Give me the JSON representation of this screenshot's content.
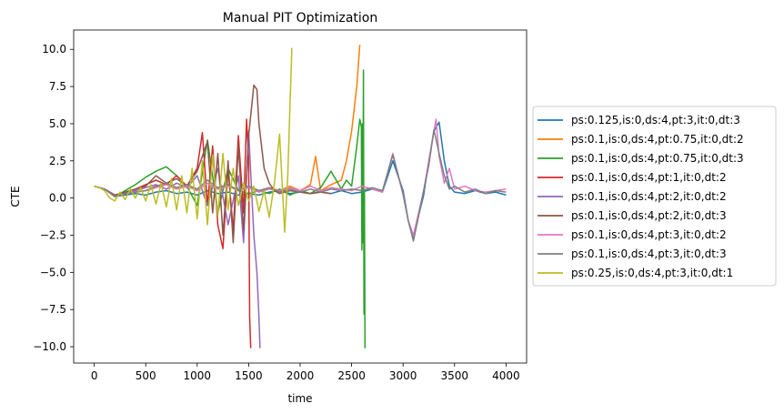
{
  "chart_data": {
    "type": "line",
    "title": "Manual PIT Optimization",
    "xlabel": "time",
    "ylabel": "CTE",
    "xlim": [
      -200,
      4200
    ],
    "ylim": [
      -11.1,
      11.3
    ],
    "xticks": [
      0,
      500,
      1000,
      1500,
      2000,
      2500,
      3000,
      3500,
      4000
    ],
    "xtick_labels": [
      "0",
      "500",
      "1000",
      "1500",
      "2000",
      "2500",
      "3000",
      "3500",
      "4000"
    ],
    "yticks": [
      -10.0,
      -7.5,
      -5.0,
      -2.5,
      0.0,
      2.5,
      5.0,
      7.5,
      10.0
    ],
    "ytick_labels": [
      "−10.0",
      "−7.5",
      "−5.0",
      "−2.5",
      "0.0",
      "2.5",
      "5.0",
      "7.5",
      "10.0"
    ],
    "grid": false,
    "legend_position": "right-outside",
    "series": [
      {
        "name": "ps:0.125,is:0,ds:4,pt:3,it:0,dt:3",
        "color": "#1f77b4",
        "x": [
          0,
          100,
          200,
          300,
          400,
          500,
          600,
          700,
          800,
          900,
          1000,
          1100,
          1200,
          1300,
          1400,
          1500,
          1600,
          1700,
          1800,
          1900,
          2000,
          2100,
          2200,
          2300,
          2400,
          2500,
          2600,
          2700,
          2800,
          2900,
          3000,
          3050,
          3100,
          3150,
          3200,
          3250,
          3300,
          3350,
          3400,
          3450,
          3500,
          3600,
          3700,
          3800,
          3900,
          4000
        ],
        "y": [
          0.8,
          0.6,
          0.1,
          0.2,
          0.3,
          0.2,
          0.4,
          0.5,
          0.3,
          0.4,
          0.2,
          0.5,
          0.3,
          0.4,
          0.2,
          0.3,
          0.2,
          0.4,
          0.5,
          0.3,
          0.4,
          0.3,
          0.4,
          0.3,
          0.5,
          0.3,
          0.4,
          0.6,
          0.4,
          2.5,
          0.5,
          -1.5,
          -2.8,
          -1.2,
          0.2,
          2.5,
          4.5,
          5.1,
          2.5,
          0.8,
          0.4,
          0.3,
          0.5,
          0.3,
          0.4,
          0.2
        ]
      },
      {
        "name": "ps:0.1,is:0,ds:4,pt:0.75,it:0,dt:2",
        "color": "#ff7f0e",
        "x": [
          0,
          100,
          200,
          300,
          400,
          500,
          600,
          700,
          800,
          900,
          1000,
          1100,
          1200,
          1300,
          1400,
          1500,
          1600,
          1700,
          1800,
          1900,
          2000,
          2100,
          2150,
          2200,
          2300,
          2400,
          2450,
          2500,
          2550,
          2580
        ],
        "y": [
          0.8,
          0.6,
          0.1,
          0.3,
          0.4,
          0.5,
          0.7,
          0.9,
          0.6,
          0.9,
          0.5,
          1.0,
          0.6,
          0.9,
          0.5,
          0.8,
          0.4,
          0.7,
          0.5,
          0.8,
          0.5,
          0.9,
          2.8,
          0.5,
          0.9,
          1.2,
          2.5,
          4.5,
          7.5,
          10.3
        ]
      },
      {
        "name": "ps:0.1,is:0,ds:4,pt:0.75,it:0,dt:3",
        "color": "#2ca02c",
        "x": [
          0,
          100,
          200,
          300,
          400,
          500,
          600,
          700,
          800,
          900,
          1000,
          1100,
          1200,
          1300,
          1400,
          1500,
          1600,
          1700,
          1800,
          1900,
          2000,
          2100,
          2200,
          2300,
          2400,
          2450,
          2500,
          2550,
          2580,
          2595,
          2600,
          2605,
          2610,
          2615,
          2620,
          2625,
          2630
        ],
        "y": [
          0.8,
          0.6,
          0.1,
          0.5,
          0.9,
          1.4,
          1.8,
          2.1,
          1.5,
          0.8,
          -0.5,
          3.9,
          -1.0,
          2.0,
          0.5,
          0.3,
          0.5,
          0.3,
          0.6,
          0.2,
          0.5,
          0.3,
          0.7,
          1.8,
          0.6,
          1.2,
          0.8,
          3.5,
          5.3,
          4.8,
          -3.5,
          5.0,
          -3.0,
          8.6,
          -7.8,
          0.5,
          -10.1
        ]
      },
      {
        "name": "ps:0.1,is:0,ds:4,pt:1,it:0,dt:2",
        "color": "#d62728",
        "x": [
          0,
          100,
          200,
          300,
          400,
          500,
          600,
          700,
          800,
          900,
          1000,
          1050,
          1100,
          1150,
          1200,
          1250,
          1300,
          1350,
          1400,
          1450,
          1480,
          1500,
          1510,
          1520
        ],
        "y": [
          0.8,
          0.6,
          0.2,
          0.4,
          0.6,
          0.9,
          1.2,
          0.9,
          1.5,
          0.8,
          2.0,
          4.4,
          -0.5,
          3.5,
          -1.8,
          -3.4,
          2.0,
          -2.2,
          4.2,
          -1.0,
          5.3,
          2.5,
          -8.0,
          -10.1
        ]
      },
      {
        "name": "ps:0.1,is:0,ds:4,pt:2,it:0,dt:2",
        "color": "#9467bd",
        "x": [
          0,
          100,
          200,
          300,
          400,
          500,
          600,
          700,
          800,
          900,
          1000,
          1100,
          1200,
          1300,
          1400,
          1450,
          1500,
          1550,
          1580,
          1600,
          1610
        ],
        "y": [
          0.8,
          0.6,
          0.1,
          0.3,
          0.5,
          0.7,
          0.9,
          0.6,
          1.0,
          0.7,
          1.5,
          -0.5,
          2.0,
          -1.8,
          1.5,
          -3.0,
          4.5,
          -2.5,
          -5.0,
          -8.0,
          -10.1
        ]
      },
      {
        "name": "ps:0.1,is:0,ds:4,pt:2,it:0,dt:3",
        "color": "#8c564b",
        "x": [
          0,
          100,
          200,
          300,
          400,
          500,
          600,
          700,
          800,
          900,
          1000,
          1100,
          1150,
          1200,
          1250,
          1300,
          1350,
          1400,
          1450,
          1500,
          1550,
          1580,
          1600,
          1650,
          1700,
          1750,
          1800,
          1900,
          2000,
          2100,
          2200,
          2300
        ],
        "y": [
          0.8,
          0.6,
          0.2,
          0.4,
          0.6,
          0.8,
          1.5,
          1.0,
          1.3,
          0.8,
          1.8,
          3.8,
          -1.0,
          3.0,
          -2.5,
          2.5,
          -3.0,
          3.5,
          -2.2,
          4.2,
          7.6,
          7.3,
          5.0,
          2.0,
          1.0,
          0.5,
          0.3,
          0.5,
          0.4,
          0.3,
          0.4,
          0.3
        ]
      },
      {
        "name": "ps:0.1,is:0,ds:4,pt:3,it:0,dt:2",
        "color": "#e377c2",
        "x": [
          0,
          100,
          200,
          300,
          400,
          500,
          600,
          700,
          800,
          900,
          1000,
          1100,
          1200,
          1300,
          1400,
          1500,
          1600,
          1700,
          1800,
          1900,
          2000,
          2100,
          2200,
          2300,
          2400,
          2500,
          2600,
          2700,
          2800,
          2900,
          3000,
          3050,
          3100,
          3150,
          3200,
          3250,
          3300,
          3320,
          3350,
          3400,
          3450,
          3500,
          3600,
          3700,
          3800,
          3900,
          4000
        ],
        "y": [
          0.8,
          0.6,
          0.1,
          0.3,
          0.4,
          0.5,
          0.7,
          0.9,
          0.6,
          0.8,
          0.5,
          1.0,
          0.6,
          0.8,
          0.5,
          0.7,
          0.4,
          0.6,
          0.5,
          0.7,
          0.5,
          0.8,
          0.5,
          0.7,
          0.6,
          0.5,
          0.8,
          0.6,
          0.4,
          3.0,
          0.2,
          -1.5,
          -2.5,
          -1.0,
          0.5,
          2.5,
          4.5,
          5.3,
          2.8,
          1.0,
          2.0,
          0.6,
          0.8,
          0.5,
          0.4,
          0.5,
          0.6
        ]
      },
      {
        "name": "ps:0.1,is:0,ds:4,pt:3,it:0,dt:3",
        "color": "#7f7f7f",
        "x": [
          0,
          100,
          200,
          300,
          400,
          500,
          600,
          700,
          800,
          900,
          1000,
          1100,
          1200,
          1300,
          1400,
          1500,
          1600,
          1700,
          1800,
          1900,
          2000,
          2100,
          2200,
          2300,
          2400,
          2500,
          2600,
          2700,
          2800,
          2900,
          3000,
          3050,
          3100,
          3150,
          3200,
          3250,
          3300,
          3350,
          3400,
          3450,
          3500,
          3600,
          3700,
          3800,
          3900,
          4000
        ],
        "y": [
          0.8,
          0.6,
          0.1,
          0.3,
          0.4,
          0.5,
          0.8,
          1.0,
          0.7,
          0.9,
          0.6,
          1.2,
          0.7,
          0.9,
          0.5,
          0.8,
          0.5,
          0.7,
          0.4,
          0.6,
          0.4,
          0.6,
          0.4,
          0.6,
          0.5,
          0.6,
          0.5,
          0.7,
          0.5,
          2.9,
          0.3,
          -1.5,
          -2.9,
          -1.2,
          0.5,
          2.2,
          4.6,
          3.0,
          1.5,
          0.6,
          0.8,
          0.4,
          0.6,
          0.3,
          0.5,
          0.4
        ]
      },
      {
        "name": "ps:0.25,is:0,ds:4,pt:3,it:0,dt:1",
        "color": "#bcbd22",
        "x": [
          0,
          50,
          100,
          150,
          200,
          250,
          300,
          350,
          400,
          450,
          500,
          550,
          600,
          650,
          700,
          750,
          800,
          850,
          900,
          950,
          1000,
          1050,
          1100,
          1150,
          1200,
          1250,
          1300,
          1350,
          1400,
          1450,
          1500,
          1550,
          1600,
          1650,
          1700,
          1750,
          1800,
          1850,
          1880,
          1900,
          1920
        ],
        "y": [
          0.8,
          0.7,
          0.5,
          0.0,
          -0.2,
          0.4,
          -0.1,
          0.6,
          0.0,
          0.7,
          -0.2,
          0.9,
          -0.4,
          1.0,
          -0.6,
          1.3,
          -0.8,
          1.5,
          -1.0,
          2.0,
          -1.4,
          2.5,
          -1.8,
          2.9,
          -1.2,
          3.0,
          -0.8,
          2.0,
          -0.5,
          1.0,
          -0.2,
          0.8,
          -0.9,
          0.5,
          -1.3,
          1.0,
          4.3,
          -2.3,
          1.5,
          6.0,
          10.1
        ]
      }
    ]
  }
}
